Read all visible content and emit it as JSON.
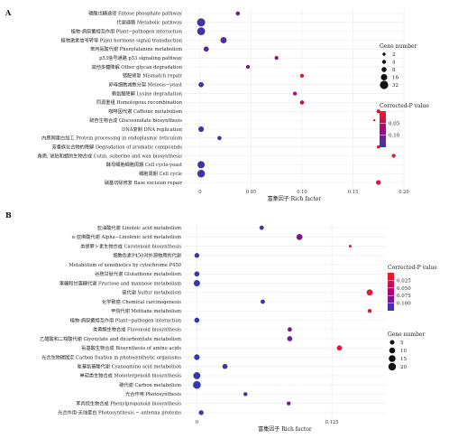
{
  "chart_data": [
    {
      "panel": "A",
      "type": "scatter",
      "xlabel": "富集因子 Rich factor",
      "xlim": [
        -0.015,
        0.2
      ],
      "xticks": [
        0,
        0.05,
        0.1,
        0.15,
        0.2
      ],
      "xtick_labels": [
        "0",
        "0.05",
        "0.10",
        "0.15",
        "0.20"
      ],
      "size_legend_title": "Gene number",
      "size_legend_values": [
        2,
        4,
        8,
        16,
        32
      ],
      "color_legend_title": "Corrected-P value",
      "color_legend_ticks": [
        0.05,
        0.1
      ],
      "color_legend_labels": [
        "0.05",
        "0.10"
      ],
      "color_range": [
        0.0,
        0.15
      ],
      "categories": [
        "磷酸戊糖途径 Entose phosphate pathway",
        "代谢通路 Metabolic pathway",
        "植物-病原菌相互作用 Plant−pathogen interaction",
        "植物激素信号转导 Plant hormone signal transduction",
        "苯丙氨酸代谢 Phenylalanine metabolism",
        "p53信号通路 p53 signaling pathway",
        "其他多糖降解 Other glycan degradation",
        "错配修复 Mismatch repair",
        "卵母细胞减数分裂 Meiosis−yeast",
        "赖氨酸降解 Lysine degradation",
        "同源重组 Homologous recombination",
        "咖啡因代谢 Caffeine metabolism",
        "硫苷生物合成 Glucosinolate biosynthesis",
        "DNA复制 DNA replication",
        "内质网蛋白加工 Protein processing in endoplasmic reticulum",
        "芳香族化合物的降解 Degradation of aromatic compounds",
        "角质, 琥珀和蜡的生物合成 Cutin, suberine and wax biosynthesis",
        "酵母细胞细胞周期 Cell cycle-yeast",
        "细胞周期 Cell cycle",
        "碱基切除修复 Base excision repair"
      ],
      "points": [
        {
          "x": 0.037,
          "count": 4,
          "p": 0.12
        },
        {
          "x": 0.001,
          "count": 28,
          "p": 0.14
        },
        {
          "x": 0.001,
          "count": 26,
          "p": 0.14
        },
        {
          "x": 0.023,
          "count": 14,
          "p": 0.13
        },
        {
          "x": 0.006,
          "count": 8,
          "p": 0.13
        },
        {
          "x": 0.075,
          "count": 3,
          "p": 0.09
        },
        {
          "x": 0.047,
          "count": 3,
          "p": 0.1
        },
        {
          "x": 0.1,
          "count": 3,
          "p": 0.02
        },
        {
          "x": 0.001,
          "count": 8,
          "p": 0.14
        },
        {
          "x": 0.093,
          "count": 3,
          "p": 0.06
        },
        {
          "x": 0.1,
          "count": 4,
          "p": 0.05
        },
        {
          "x": 0.175,
          "count": 3,
          "p": 0.02
        },
        {
          "x": 0.171,
          "count": 1,
          "p": 0.01
        },
        {
          "x": 0.001,
          "count": 10,
          "p": 0.14
        },
        {
          "x": 0.019,
          "count": 4,
          "p": 0.13
        },
        {
          "x": 0.175,
          "count": 2,
          "p": 0.01
        },
        {
          "x": 0.19,
          "count": 3,
          "p": 0.01
        },
        {
          "x": 0.001,
          "count": 20,
          "p": 0.14
        },
        {
          "x": 0.001,
          "count": 24,
          "p": 0.14
        },
        {
          "x": 0.175,
          "count": 6,
          "p": 0.03
        }
      ]
    },
    {
      "panel": "B",
      "type": "scatter",
      "xlabel": "富集因子 Rich factor",
      "xlim": [
        -0.012,
        0.175
      ],
      "xticks": [
        0,
        0.125
      ],
      "xtick_labels": [
        "0",
        "0.125"
      ],
      "size_legend_title": "Gene number",
      "size_legend_values": [
        5,
        10,
        15,
        20
      ],
      "color_legend_title": "Corrected-P value",
      "color_legend_ticks": [
        0.025,
        0.05,
        0.075,
        0.1
      ],
      "color_legend_labels": [
        "0.025",
        "0.050",
        "0.075",
        "0.100"
      ],
      "color_range": [
        0.0,
        0.125
      ],
      "categories": [
        "亚油酸代谢 Linoleic acid metabolism",
        "α-亚麻酸代谢 Alpha−Linolenic acid metabolism",
        "类胡萝卜素生物合成 Carotenoid biosynthesis",
        "细胞色素P450对外源物质的代谢",
        "Metabolism of xenobiotics by cytochrome P450",
        "谷胱甘肽代谢 Glutathione metabolism",
        "果糖和甘露糖代谢 Fructose and mannose metabolism",
        "硫代谢 Sulfur metabolism",
        "化学致癌 Chemical carcinogenesis",
        "甲烷代谢 Methane metabolism",
        "植物-病原菌相互作用 Plant−pathogen interaction",
        "类黄酮生物合成 Flavonoid biosynthesis",
        "乙醛酸和二羧酸代谢 Glyoxylate and dicarboxylate metabolism",
        "氨基酸生物合成 Biosynthesis of amino acids",
        "光合生物碳固定 Carbon fixation in photosynthetic organisms",
        "氰基氨基酸代谢 Cyanoamino acid metabolism",
        "单萜类生物合成 Monoterpenoid biosynthesis",
        "碳代谢 Carbon metabolism",
        "光合作用 Photosynthesis",
        "苯丙烷生物合成 Phenylpropanoid biosynthesis",
        "光合作用-天线蛋白 Photosynthesis − antenna proteins"
      ],
      "points": [
        {
          "row": 0,
          "x": 0.06,
          "count": 4,
          "p": 0.11
        },
        {
          "row": 1,
          "x": 0.095,
          "count": 10,
          "p": 0.08
        },
        {
          "row": 2,
          "x": 0.142,
          "count": 2,
          "p": 0.01
        },
        {
          "row": 3,
          "x": 0.0,
          "count": 5,
          "p": 0.12
        },
        {
          "row": 5,
          "x": 0.0,
          "count": 6,
          "p": 0.12
        },
        {
          "row": 6,
          "x": 0.0,
          "count": 11,
          "p": 0.12
        },
        {
          "row": 7,
          "x": 0.16,
          "count": 10,
          "p": 0.01
        },
        {
          "row": 8,
          "x": 0.061,
          "count": 4,
          "p": 0.11
        },
        {
          "row": 9,
          "x": 0.16,
          "count": 3,
          "p": 0.01
        },
        {
          "row": 10,
          "x": 0.0,
          "count": 6,
          "p": 0.12
        },
        {
          "row": 11,
          "x": 0.086,
          "count": 4,
          "p": 0.09
        },
        {
          "row": 12,
          "x": 0.086,
          "count": 6,
          "p": 0.09
        },
        {
          "row": 13,
          "x": 0.132,
          "count": 6,
          "p": 0.02
        },
        {
          "row": 14,
          "x": 0.0,
          "count": 8,
          "p": 0.12
        },
        {
          "row": 15,
          "x": 0.026,
          "count": 6,
          "p": 0.12
        },
        {
          "row": 16,
          "x": 0.0,
          "count": 15,
          "p": 0.12
        },
        {
          "row": 17,
          "x": 0.0,
          "count": 20,
          "p": 0.12
        },
        {
          "row": 18,
          "x": 0.045,
          "count": 3,
          "p": 0.11
        },
        {
          "row": 19,
          "x": 0.085,
          "count": 3,
          "p": 0.09
        },
        {
          "row": 20,
          "x": 0.004,
          "count": 5,
          "p": 0.12
        }
      ]
    }
  ],
  "colors": {
    "low_p": "#ff1a1a",
    "mid_p": "#b0007f",
    "high_p": "#2f3bb8",
    "grid": "#ebebeb",
    "panel_bg": "#ffffff",
    "point": "#111111"
  }
}
